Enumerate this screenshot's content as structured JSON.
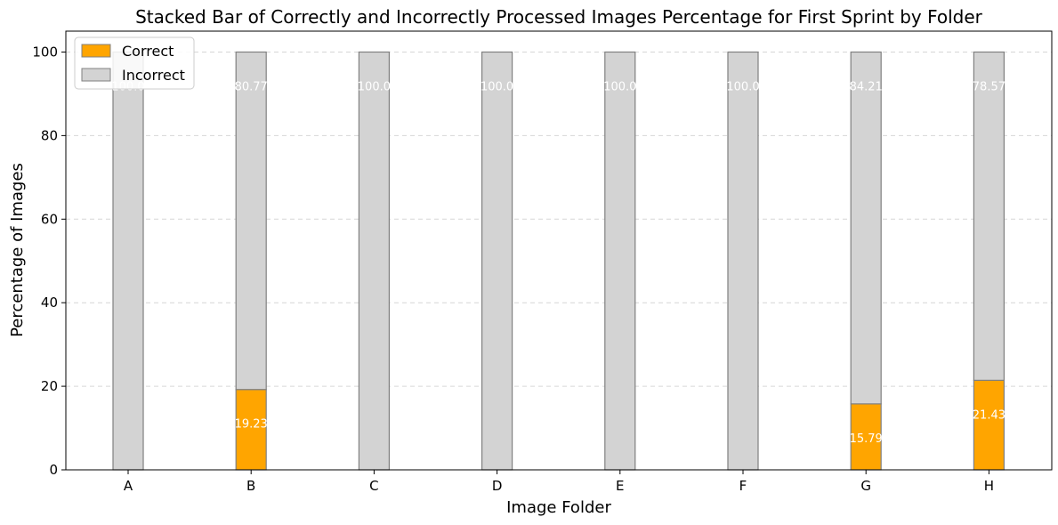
{
  "chart_data": {
    "type": "bar",
    "stacked": true,
    "title": "Stacked Bar of Correctly and Incorrectly Processed Images Percentage for First Sprint by Folder",
    "xlabel": "Image Folder",
    "ylabel": "Percentage of Images",
    "categories": [
      "A",
      "B",
      "C",
      "D",
      "E",
      "F",
      "G",
      "H"
    ],
    "ylim": [
      0,
      105
    ],
    "yticks": [
      0,
      20,
      40,
      60,
      80,
      100
    ],
    "grid": "y-dashed",
    "legend_position": "top-left",
    "series": [
      {
        "name": "Correct",
        "color": "#ffa500",
        "values": [
          0,
          19.23,
          0,
          0,
          0,
          0,
          15.79,
          21.43
        ],
        "labels": [
          "",
          "19.23",
          "",
          "",
          "",
          "",
          "15.79",
          "21.43"
        ]
      },
      {
        "name": "Incorrect",
        "color": "#d3d3d3",
        "values": [
          100.0,
          80.77,
          100.0,
          100.0,
          100.0,
          100.0,
          84.21,
          78.57
        ],
        "labels": [
          "100.0",
          "80.77",
          "100.0",
          "100.0",
          "100.0",
          "100.0",
          "84.21",
          "78.57"
        ]
      }
    ]
  }
}
